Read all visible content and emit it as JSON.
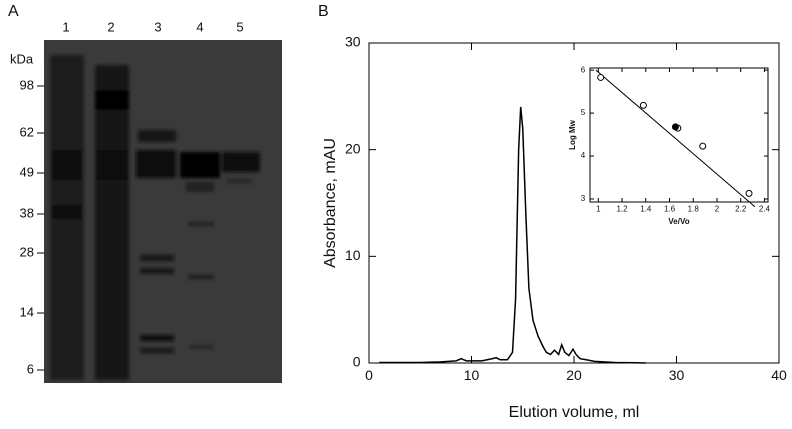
{
  "panel_a": {
    "label": "A",
    "lanes": [
      "1",
      "2",
      "3",
      "4",
      "5"
    ],
    "unit": "kDa",
    "markers": [
      98,
      62,
      49,
      38,
      28,
      14,
      6
    ]
  },
  "chart_data": [
    {
      "type": "line",
      "panel_label": "B",
      "xlabel": "Elution volume, ml",
      "ylabel": "Absorbance, mAU",
      "color": "#000000",
      "x": [
        1,
        3,
        5,
        7,
        8.5,
        9,
        9.5,
        11,
        12,
        12.4,
        12.8,
        13.5,
        14,
        14.3,
        14.6,
        14.8,
        15.0,
        15.3,
        15.6,
        16,
        16.5,
        17,
        17.3,
        17.7,
        18.1,
        18.5,
        18.8,
        19.1,
        19.5,
        19.9,
        20.2,
        20.6,
        21.2,
        22,
        24,
        26,
        27
      ],
      "values": [
        0.05,
        0.05,
        0.05,
        0.1,
        0.2,
        0.4,
        0.2,
        0.2,
        0.4,
        0.5,
        0.3,
        0.3,
        1,
        6,
        20,
        24,
        22,
        14,
        7,
        4,
        2.5,
        1.5,
        1,
        0.8,
        1.2,
        0.8,
        1.7,
        1.0,
        0.7,
        1.3,
        0.8,
        0.4,
        0.3,
        0.15,
        0.05,
        0.02,
        0
      ],
      "xlim": [
        0,
        40
      ],
      "ylim": [
        0,
        30
      ],
      "xticks": [
        0,
        10,
        20,
        30,
        40
      ],
      "yticks": [
        0,
        10,
        20,
        30
      ]
    },
    {
      "type": "scatter",
      "xlabel": "Ve/Vo",
      "ylabel": "Log Mw",
      "series": [
        {
          "x": [
            1.02,
            1.38,
            1.67,
            1.88,
            2.27
          ],
          "values": [
            5.83,
            5.18,
            4.65,
            4.23,
            3.13
          ],
          "color": "#000000",
          "filled": false
        },
        {
          "x": [
            1.65
          ],
          "values": [
            4.68
          ],
          "color": "#000000",
          "filled": true
        }
      ],
      "fit": {
        "x": [
          0.98,
          2.32
        ],
        "values": [
          6.0,
          2.82
        ]
      },
      "xlim": [
        0.93,
        2.43
      ],
      "ylim": [
        2.93,
        6.05
      ],
      "xticks": [
        1,
        1.2,
        1.4,
        1.6,
        1.8,
        2,
        2.2,
        2.4
      ],
      "yticks": [
        3,
        4,
        5,
        6
      ]
    }
  ]
}
